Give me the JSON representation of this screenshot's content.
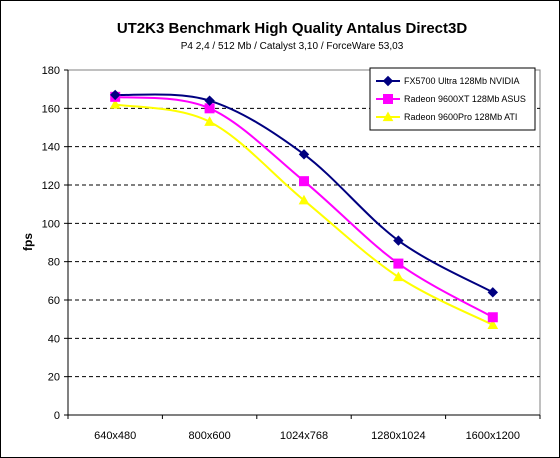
{
  "chart_data": {
    "type": "line",
    "title": "UT2K3 Benchmark High Quality Antalus Direct3D",
    "subtitle": "P4 2,4 / 512 Mb / Catalyst 3,10 / ForceWare 53,03",
    "xlabel": "",
    "ylabel": "fps",
    "ylim": [
      0,
      180
    ],
    "y_ticks": [
      0,
      20,
      40,
      60,
      80,
      100,
      120,
      140,
      160,
      180
    ],
    "categories": [
      "640x480",
      "800x600",
      "1024x768",
      "1280x1024",
      "1600x1200"
    ],
    "grid": "horizontal-dashed",
    "legend_position": "top-right",
    "plot_background": "#ffffff",
    "series": [
      {
        "name": "FX5700 Ultra 128Mb NVIDIA",
        "color": "#000080",
        "marker": "diamond",
        "values": [
          167,
          164,
          136,
          91,
          64
        ]
      },
      {
        "name": "Radeon 9600XT 128Mb ASUS",
        "color": "#ff00ff",
        "marker": "square",
        "values": [
          166,
          160,
          122,
          79,
          51
        ]
      },
      {
        "name": "Radeon 9600Pro 128Mb ATI",
        "color": "#ffff00",
        "marker": "triangle",
        "values": [
          162,
          153,
          112,
          72,
          47
        ]
      }
    ]
  }
}
